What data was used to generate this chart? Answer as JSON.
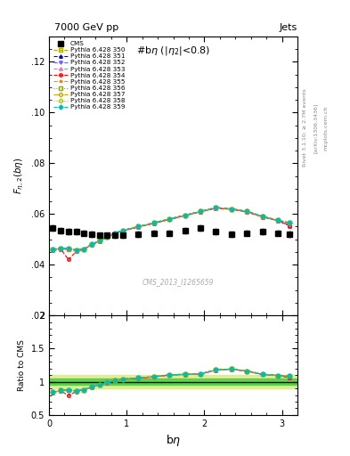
{
  "title_top": "7000 GeV pp",
  "title_right": "Jets",
  "plot_title": "#bη (|η₂|<0.8)",
  "xlabel": "bη",
  "ylabel_main": "F_{η,2}(bη)",
  "ylabel_ratio": "Ratio to CMS",
  "watermark": "CMS_2013_I1265659",
  "cms_x": [
    0.05,
    0.15,
    0.25,
    0.35,
    0.45,
    0.55,
    0.65,
    0.75,
    0.85,
    0.95,
    1.15,
    1.35,
    1.55,
    1.75,
    1.95,
    2.15,
    2.35,
    2.55,
    2.75,
    2.95,
    3.1
  ],
  "cms_y": [
    0.0545,
    0.0535,
    0.053,
    0.053,
    0.0525,
    0.052,
    0.0515,
    0.0515,
    0.0515,
    0.0515,
    0.052,
    0.0525,
    0.0525,
    0.0535,
    0.0545,
    0.053,
    0.052,
    0.0525,
    0.053,
    0.0525,
    0.052
  ],
  "cms_yerr": [
    0.001,
    0.001,
    0.001,
    0.001,
    0.001,
    0.001,
    0.001,
    0.001,
    0.001,
    0.001,
    0.001,
    0.001,
    0.001,
    0.001,
    0.001,
    0.001,
    0.001,
    0.001,
    0.001,
    0.001,
    0.001
  ],
  "pythia_x": [
    0.05,
    0.15,
    0.25,
    0.35,
    0.45,
    0.55,
    0.65,
    0.75,
    0.85,
    0.95,
    1.15,
    1.35,
    1.55,
    1.75,
    1.95,
    2.15,
    2.35,
    2.55,
    2.75,
    2.95,
    3.1
  ],
  "series": [
    {
      "label": "Pythia 6.428 350",
      "color": "#aaaa00",
      "linestyle": "--",
      "marker": "s",
      "fillstyle": "none",
      "y": [
        0.046,
        0.0465,
        0.046,
        0.0455,
        0.0462,
        0.048,
        0.0495,
        0.051,
        0.0525,
        0.0535,
        0.055,
        0.0565,
        0.058,
        0.0595,
        0.061,
        0.0625,
        0.062,
        0.061,
        0.059,
        0.0575,
        0.0565
      ]
    },
    {
      "label": "Pythia 6.428 351",
      "color": "#0000cc",
      "linestyle": "--",
      "marker": "^",
      "fillstyle": "full",
      "y": [
        0.046,
        0.0465,
        0.0465,
        0.0458,
        0.0462,
        0.048,
        0.0495,
        0.051,
        0.0525,
        0.0535,
        0.055,
        0.0565,
        0.058,
        0.0595,
        0.061,
        0.0625,
        0.062,
        0.061,
        0.059,
        0.0575,
        0.0555
      ]
    },
    {
      "label": "Pythia 6.428 352",
      "color": "#6666ff",
      "linestyle": "--",
      "marker": "v",
      "fillstyle": "full",
      "y": [
        0.046,
        0.0465,
        0.0465,
        0.0458,
        0.0462,
        0.048,
        0.0495,
        0.051,
        0.0525,
        0.0535,
        0.055,
        0.0565,
        0.058,
        0.0595,
        0.061,
        0.0625,
        0.062,
        0.061,
        0.059,
        0.0575,
        0.0555
      ]
    },
    {
      "label": "Pythia 6.428 353",
      "color": "#ff66aa",
      "linestyle": "--",
      "marker": "^",
      "fillstyle": "none",
      "y": [
        0.0455,
        0.046,
        0.046,
        0.0453,
        0.046,
        0.0478,
        0.0493,
        0.0508,
        0.0523,
        0.0533,
        0.0548,
        0.0563,
        0.0578,
        0.0593,
        0.0608,
        0.0623,
        0.0618,
        0.0608,
        0.0588,
        0.0573,
        0.0553
      ]
    },
    {
      "label": "Pythia 6.428 354",
      "color": "#ff0000",
      "linestyle": "--",
      "marker": "o",
      "fillstyle": "none",
      "y": [
        0.0455,
        0.0462,
        0.042,
        0.0452,
        0.046,
        0.0478,
        0.0493,
        0.0508,
        0.0523,
        0.0533,
        0.0548,
        0.0563,
        0.0578,
        0.0593,
        0.0608,
        0.0623,
        0.0618,
        0.0608,
        0.0588,
        0.0573,
        0.0553
      ]
    },
    {
      "label": "Pythia 6.428 355",
      "color": "#ff8800",
      "linestyle": "--",
      "marker": "*",
      "fillstyle": "full",
      "y": [
        0.046,
        0.0465,
        0.046,
        0.0455,
        0.0462,
        0.048,
        0.0495,
        0.051,
        0.0525,
        0.0535,
        0.055,
        0.0565,
        0.058,
        0.0595,
        0.061,
        0.0625,
        0.062,
        0.061,
        0.059,
        0.0575,
        0.0565
      ]
    },
    {
      "label": "Pythia 6.428 356",
      "color": "#88aa00",
      "linestyle": ":",
      "marker": "s",
      "fillstyle": "none",
      "y": [
        0.046,
        0.0465,
        0.0465,
        0.0458,
        0.0462,
        0.048,
        0.0495,
        0.051,
        0.0525,
        0.0535,
        0.055,
        0.0565,
        0.058,
        0.0595,
        0.061,
        0.0625,
        0.062,
        0.061,
        0.059,
        0.0575,
        0.0565
      ]
    },
    {
      "label": "Pythia 6.428 357",
      "color": "#ccaa00",
      "linestyle": "-.",
      "marker": "D",
      "fillstyle": "none",
      "y": [
        0.046,
        0.0465,
        0.0465,
        0.0458,
        0.0462,
        0.048,
        0.0495,
        0.051,
        0.0525,
        0.0535,
        0.055,
        0.0565,
        0.058,
        0.0595,
        0.061,
        0.0625,
        0.062,
        0.061,
        0.059,
        0.0575,
        0.0565
      ]
    },
    {
      "label": "Pythia 6.428 358",
      "color": "#aacc00",
      "linestyle": ":",
      "marker": "D",
      "fillstyle": "none",
      "y": [
        0.046,
        0.0465,
        0.0465,
        0.0458,
        0.0462,
        0.048,
        0.0495,
        0.051,
        0.0525,
        0.0535,
        0.055,
        0.0565,
        0.058,
        0.0595,
        0.061,
        0.0625,
        0.062,
        0.061,
        0.059,
        0.0575,
        0.0565
      ]
    },
    {
      "label": "Pythia 6.428 359",
      "color": "#00bbbb",
      "linestyle": "--",
      "marker": "D",
      "fillstyle": "full",
      "y": [
        0.046,
        0.0465,
        0.0465,
        0.0458,
        0.0462,
        0.048,
        0.0495,
        0.051,
        0.0525,
        0.0535,
        0.055,
        0.0565,
        0.058,
        0.0595,
        0.061,
        0.0625,
        0.062,
        0.061,
        0.059,
        0.0575,
        0.0565
      ]
    }
  ],
  "xlim": [
    0.0,
    3.2
  ],
  "ylim_main": [
    0.02,
    0.13
  ],
  "ylim_ratio": [
    0.5,
    2.0
  ],
  "yticks_main": [
    0.02,
    0.04,
    0.06,
    0.08,
    0.1,
    0.12
  ],
  "yticks_ratio": [
    0.5,
    1.0,
    1.5,
    2.0
  ],
  "xticks": [
    0,
    1,
    2,
    3
  ],
  "ratio_band_inner": 0.05,
  "ratio_band_outer": 0.1
}
